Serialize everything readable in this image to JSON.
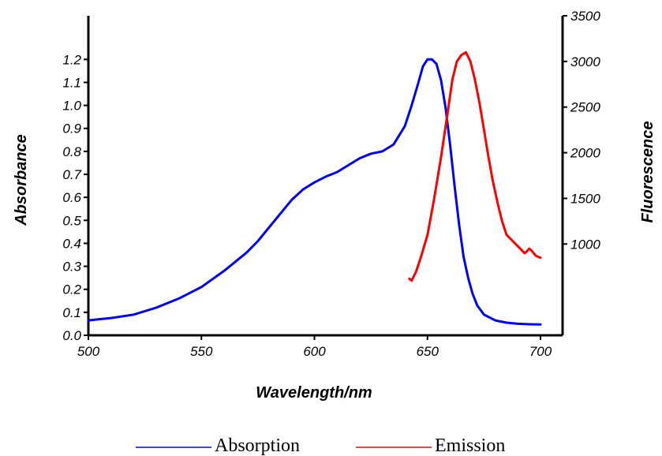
{
  "chart_data": {
    "type": "line",
    "title": "",
    "xlabel": "Wavelength/nm",
    "ylabel": "Absorbance",
    "y2label": "Fluorescence",
    "xlim": [
      500,
      705
    ],
    "ylim": [
      0,
      1.28
    ],
    "y2lim": [
      0,
      3500
    ],
    "x_ticks": [
      "500",
      "550",
      "600",
      "650",
      "700"
    ],
    "y_ticks": [
      "0.0",
      "0.1",
      "0.2",
      "0.3",
      "0.4",
      "0.5",
      "0.6",
      "0.7",
      "0.8",
      "0.9",
      "1.0",
      "1.1",
      "1.2"
    ],
    "y2_ticks": [
      "1000",
      "1500",
      "2000",
      "2500",
      "3000",
      "3500"
    ],
    "grid": false,
    "legend_position": "bottom-center",
    "series": [
      {
        "name": "Absorption",
        "axis": "left",
        "color": "#0000ff",
        "x": [
          500,
          510,
          520,
          530,
          540,
          550,
          560,
          570,
          575,
          580,
          585,
          590,
          595,
          600,
          605,
          610,
          615,
          620,
          625,
          630,
          635,
          640,
          643,
          646,
          648,
          650,
          652,
          654,
          656,
          658,
          660,
          662,
          664,
          666,
          668,
          670,
          672,
          675,
          680,
          685,
          690,
          695,
          700
        ],
        "values": [
          0.065,
          0.075,
          0.09,
          0.12,
          0.16,
          0.21,
          0.28,
          0.36,
          0.41,
          0.47,
          0.53,
          0.59,
          0.635,
          0.665,
          0.69,
          0.71,
          0.74,
          0.77,
          0.79,
          0.8,
          0.83,
          0.91,
          1.0,
          1.1,
          1.17,
          1.2,
          1.2,
          1.18,
          1.11,
          0.99,
          0.83,
          0.65,
          0.48,
          0.34,
          0.25,
          0.18,
          0.13,
          0.09,
          0.065,
          0.055,
          0.05,
          0.048,
          0.047
        ]
      },
      {
        "name": "Emission",
        "axis": "right",
        "color": "#ff0000",
        "x": [
          642,
          643,
          645,
          647,
          650,
          653,
          656,
          659,
          661,
          663,
          665,
          667,
          669,
          671,
          673,
          675,
          677,
          679,
          681,
          683,
          685,
          687,
          689,
          691,
          693,
          694,
          695,
          696,
          697,
          698,
          699,
          700
        ],
        "values": [
          620,
          600,
          700,
          850,
          1100,
          1500,
          1950,
          2450,
          2800,
          3000,
          3070,
          3100,
          3000,
          2800,
          2550,
          2250,
          1950,
          1680,
          1450,
          1250,
          1100,
          1050,
          1000,
          950,
          900,
          920,
          950,
          930,
          900,
          870,
          860,
          850
        ]
      }
    ]
  }
}
